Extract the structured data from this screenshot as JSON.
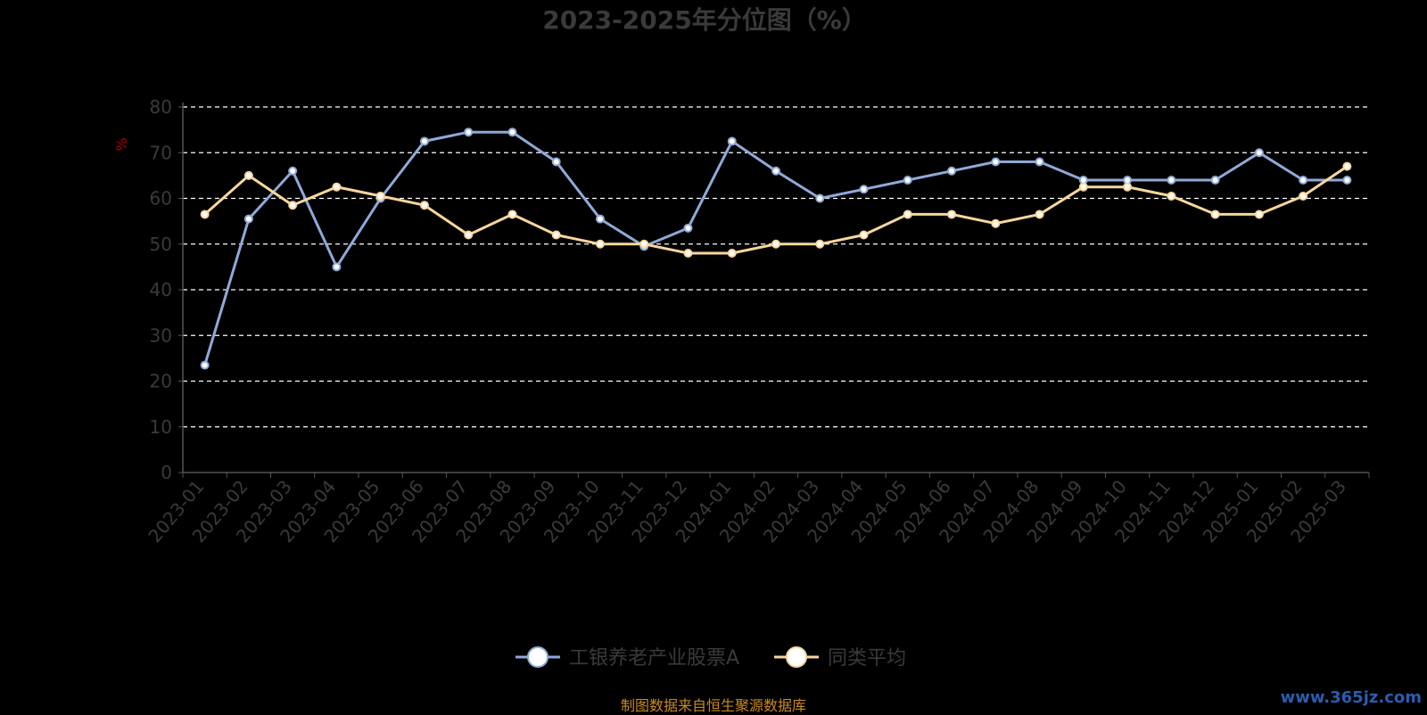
{
  "chart_data": {
    "type": "line",
    "title": "2023-2025年分位图（%）",
    "ylabel": "%",
    "xlabel": "",
    "ylim": [
      0,
      80
    ],
    "yticks": [
      0,
      10,
      20,
      30,
      40,
      50,
      60,
      70,
      80
    ],
    "grid": true,
    "legend": "bottom-center",
    "categories": [
      "2023-01",
      "2023-02",
      "2023-03",
      "2023-04",
      "2023-05",
      "2023-06",
      "2023-07",
      "2023-08",
      "2023-09",
      "2023-10",
      "2023-11",
      "2023-12",
      "2024-01",
      "2024-02",
      "2024-03",
      "2024-04",
      "2024-05",
      "2024-06",
      "2024-07",
      "2024-08",
      "2024-09",
      "2024-10",
      "2024-11",
      "2024-12",
      "2025-01",
      "2025-02",
      "2025-03"
    ],
    "series": [
      {
        "name": "工银养老产业股票A",
        "color": "#8fa9d8",
        "values": [
          23.5,
          55.5,
          66,
          45,
          60,
          72.5,
          74.5,
          74.5,
          68,
          55.5,
          49.5,
          53.5,
          72.5,
          66,
          60,
          62,
          64,
          66,
          68,
          68,
          64,
          64,
          64,
          64,
          70,
          64,
          64
        ]
      },
      {
        "name": "同类平均",
        "color": "#f7d79b",
        "values": [
          56.5,
          65,
          58.5,
          62.5,
          60.5,
          58.5,
          52,
          56.5,
          52,
          50,
          50,
          48,
          48,
          50,
          50,
          52,
          56.5,
          56.5,
          54.5,
          56.5,
          62.5,
          62.5,
          60.5,
          56.5,
          56.5,
          60.5,
          67
        ]
      }
    ]
  },
  "footer": {
    "source": "制图数据来自恒生聚源数据库",
    "watermark": "www.365jz.com"
  }
}
